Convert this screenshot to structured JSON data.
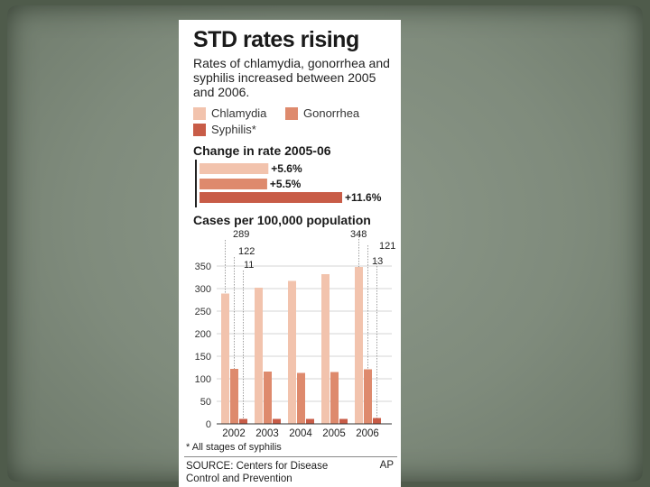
{
  "colors": {
    "chlamydia": "#f2c3ad",
    "gonorrhea": "#de8a6d",
    "syphilis": "#c85c47"
  },
  "graphic": {
    "title": "STD rates rising",
    "subtitle": "Rates of chlamydia, gonorrhea and syphilis increased between 2005 and 2006.",
    "legend": [
      "Chlamydia",
      "Gonorrhea",
      "Syphilis*"
    ],
    "change_heading": "Change in rate 2005-06",
    "cases_heading": "Cases per 100,000 population",
    "footnote": "* All stages of syphilis",
    "source": "SOURCE: Centers for Disease Control and Prevention",
    "credit": "AP"
  },
  "chart_data": [
    {
      "type": "bar",
      "orientation": "horizontal",
      "title": "Change in rate 2005-06",
      "categories": [
        "Chlamydia",
        "Gonorrhea",
        "Syphilis*"
      ],
      "values": [
        5.6,
        5.5,
        11.6
      ],
      "labels": [
        "+5.6%",
        "+5.5%",
        "+11.6%"
      ]
    },
    {
      "type": "bar",
      "title": "Cases per 100,000 population",
      "categories": [
        "2002",
        "2003",
        "2004",
        "2005",
        "2006"
      ],
      "series": [
        {
          "name": "Chlamydia",
          "values": [
            289,
            302,
            317,
            332,
            348
          ]
        },
        {
          "name": "Gonorrhea",
          "values": [
            122,
            116,
            113,
            115,
            121
          ]
        },
        {
          "name": "Syphilis*",
          "values": [
            11,
            11,
            11,
            11,
            13
          ]
        }
      ],
      "yticks": [
        "0",
        "50",
        "100",
        "150",
        "200",
        "250",
        "300",
        "350"
      ],
      "ylim": [
        0,
        350
      ],
      "annotations": {
        "2002": [
          "289",
          "122",
          "11"
        ],
        "2006": [
          "348",
          "121",
          "13"
        ]
      }
    }
  ]
}
